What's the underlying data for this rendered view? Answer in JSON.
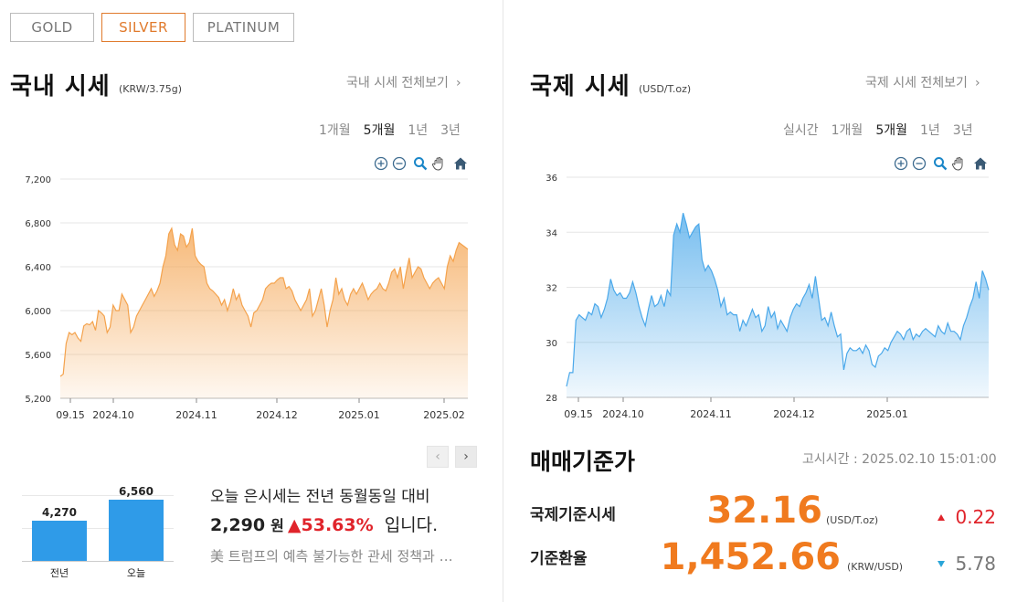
{
  "tabs": [
    {
      "label": "GOLD",
      "active": false
    },
    {
      "label": "SILVER",
      "active": true
    },
    {
      "label": "PLATINUM",
      "active": false
    }
  ],
  "domestic": {
    "title": "국내 시세",
    "unit": "(KRW/3.75g)",
    "more": "국내 시세 전체보기",
    "ranges": [
      "1개월",
      "5개월",
      "1년",
      "3년"
    ],
    "active_range": "5개월"
  },
  "international": {
    "title": "국제 시세",
    "unit": "(USD/T.oz)",
    "more": "국제 시세 전체보기",
    "ranges": [
      "실시간",
      "1개월",
      "5개월",
      "1년",
      "3년"
    ],
    "active_range": "5개월"
  },
  "icons": [
    "zoom-in-icon",
    "zoom-out-icon",
    "magnifier-icon",
    "hand-pan-icon",
    "home-icon"
  ],
  "chart_data": [
    {
      "type": "area",
      "x_ticks": [
        "09.15",
        "2024.10",
        "2024.11",
        "2024.12",
        "2025.01",
        "2025.02"
      ],
      "y_ticks": [
        "5,200",
        "5,600",
        "6,000",
        "6,400",
        "6,800",
        "7,200"
      ],
      "ylim": [
        5200,
        7200
      ],
      "grid": true,
      "color": "#f4a24c",
      "values": [
        5400,
        5420,
        5700,
        5800,
        5780,
        5800,
        5750,
        5720,
        5860,
        5880,
        5870,
        5900,
        5820,
        6000,
        5980,
        5950,
        5800,
        5850,
        6050,
        6000,
        6000,
        6150,
        6100,
        6050,
        5800,
        5850,
        5950,
        6000,
        6050,
        6100,
        6150,
        6200,
        6130,
        6180,
        6250,
        6400,
        6500,
        6700,
        6750,
        6600,
        6550,
        6700,
        6680,
        6580,
        6620,
        6750,
        6500,
        6450,
        6420,
        6400,
        6250,
        6200,
        6180,
        6150,
        6120,
        6050,
        6100,
        6000,
        6080,
        6200,
        6100,
        6150,
        6050,
        6000,
        5950,
        5850,
        5980,
        6000,
        6050,
        6100,
        6200,
        6230,
        6250,
        6250,
        6280,
        6300,
        6300,
        6200,
        6220,
        6180,
        6100,
        6050,
        6000,
        6050,
        6100,
        6200,
        5950,
        6000,
        6100,
        6200,
        6050,
        5850,
        6000,
        6100,
        6300,
        6150,
        6200,
        6100,
        6050,
        6150,
        6200,
        6150,
        6200,
        6250,
        6180,
        6100,
        6150,
        6180,
        6200,
        6250,
        6200,
        6180,
        6250,
        6350,
        6380,
        6300,
        6400,
        6200,
        6350,
        6480,
        6300,
        6350,
        6400,
        6380,
        6300,
        6250,
        6200,
        6250,
        6280,
        6300,
        6250,
        6200,
        6400,
        6500,
        6450,
        6550,
        6620,
        6600,
        6580,
        6560
      ]
    },
    {
      "type": "area",
      "x_ticks": [
        "09.15",
        "2024.10",
        "2024.11",
        "2024.12",
        "2025.01"
      ],
      "y_ticks": [
        "28",
        "30",
        "32",
        "34",
        "36"
      ],
      "ylim": [
        28,
        36
      ],
      "grid": true,
      "color": "#4aa8ea",
      "values": [
        28.4,
        28.9,
        28.9,
        30.8,
        31.0,
        30.9,
        30.8,
        31.1,
        31.0,
        31.4,
        31.3,
        30.9,
        31.2,
        31.6,
        32.3,
        31.9,
        31.7,
        31.8,
        31.6,
        31.6,
        31.8,
        32.2,
        31.8,
        31.3,
        30.9,
        30.6,
        31.2,
        31.7,
        31.3,
        31.4,
        31.7,
        31.3,
        31.9,
        31.7,
        33.9,
        34.3,
        34.0,
        34.7,
        34.3,
        33.8,
        34.0,
        34.2,
        34.3,
        33.0,
        32.6,
        32.8,
        32.6,
        32.3,
        31.9,
        31.3,
        31.6,
        31.0,
        31.1,
        31.0,
        31.0,
        30.4,
        30.8,
        30.6,
        30.9,
        31.2,
        30.9,
        31.0,
        30.4,
        30.6,
        31.3,
        30.9,
        31.1,
        30.5,
        30.8,
        30.6,
        30.4,
        30.9,
        31.2,
        31.4,
        31.3,
        31.6,
        31.8,
        32.1,
        31.6,
        32.4,
        31.6,
        30.8,
        30.9,
        30.6,
        31.1,
        30.6,
        30.2,
        30.3,
        29.0,
        29.6,
        29.8,
        29.7,
        29.7,
        29.8,
        29.6,
        29.9,
        29.7,
        29.2,
        29.1,
        29.5,
        29.6,
        29.8,
        29.7,
        30.0,
        30.2,
        30.4,
        30.3,
        30.1,
        30.4,
        30.5,
        30.1,
        30.3,
        30.2,
        30.4,
        30.5,
        30.4,
        30.3,
        30.2,
        30.6,
        30.4,
        30.3,
        30.7,
        30.4,
        30.4,
        30.3,
        30.1,
        30.6,
        30.9,
        31.3,
        31.6,
        32.2,
        31.6,
        32.6,
        32.3,
        31.9
      ]
    },
    {
      "type": "bar",
      "categories": [
        "전년",
        "오늘"
      ],
      "values": [
        4270,
        6560
      ],
      "value_labels": [
        "4,270",
        "6,560"
      ],
      "color": "#2f9be8"
    }
  ],
  "pager": {
    "prev": "‹",
    "next": "›"
  },
  "comparison": {
    "line1": "오늘 은시세는 전년 동월동일 대비",
    "amount": "2,290",
    "won": "원",
    "arrow": "▲",
    "percent": "53.63%",
    "suffix": "입니다.",
    "news": "美 트럼프의 예측 불가능한 관세 정책과 …"
  },
  "reference": {
    "title": "매매기준가",
    "notice": "고시시간 : 2025.02.10 15:01:00",
    "rows": [
      {
        "label": "국제기준시세",
        "value": "32.16",
        "unit": "(USD/T.oz)",
        "change": "0.22",
        "direction": "up"
      },
      {
        "label": "기준환율",
        "value": "1,452.66",
        "unit": "(KRW/USD)",
        "change": "5.78",
        "direction": "down"
      }
    ],
    "colors": {
      "value": "#f07a1e",
      "up": "#e0242b",
      "down": "#2aa5d8"
    }
  }
}
